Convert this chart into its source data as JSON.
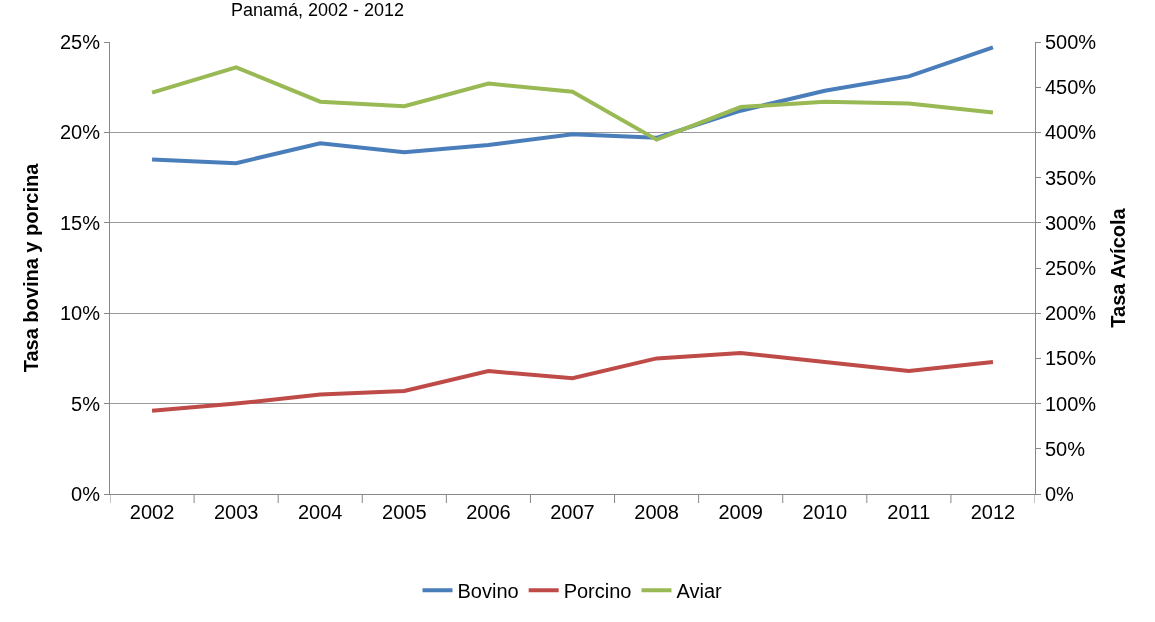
{
  "chart_data": {
    "type": "line",
    "title": "Panamá, 2002 - 2012",
    "ylabel": "Tasa bovina y porcina",
    "y2label": "Tasa Avícola",
    "categories": [
      "2002",
      "2003",
      "2004",
      "2005",
      "2006",
      "2007",
      "2008",
      "2009",
      "2010",
      "2011",
      "2012"
    ],
    "series": [
      {
        "name": "Bovino",
        "color": "#4a7ebb",
        "values": [
          18.5,
          18.3,
          19.4,
          18.9,
          19.3,
          19.9,
          19.7,
          21.2,
          22.3,
          23.1,
          24.7
        ]
      },
      {
        "name": "Porcino",
        "color": "#be4b48",
        "values": [
          4.6,
          5.0,
          5.5,
          5.7,
          6.8,
          6.4,
          7.5,
          7.8,
          7.3,
          6.8,
          7.3
        ]
      },
      {
        "name": "Aviar",
        "color": "#98b954",
        "axis": "y2",
        "values": [
          444,
          472,
          434,
          429,
          454,
          445,
          392,
          428,
          434,
          432,
          422
        ]
      }
    ],
    "ylim": [
      0,
      25
    ],
    "yticks": [
      {
        "value": 0,
        "label": "0%"
      },
      {
        "value": 5,
        "label": "5%"
      },
      {
        "value": 10,
        "label": "10%"
      },
      {
        "value": 15,
        "label": "15%"
      },
      {
        "value": 20,
        "label": "20%"
      },
      {
        "value": 25,
        "label": "25%"
      }
    ],
    "y2lim": [
      0,
      500
    ],
    "y2ticks": [
      {
        "value": 0,
        "label": "0%"
      },
      {
        "value": 50,
        "label": "50%"
      },
      {
        "value": 100,
        "label": "100%"
      },
      {
        "value": 150,
        "label": "150%"
      },
      {
        "value": 200,
        "label": "200%"
      },
      {
        "value": 250,
        "label": "250%"
      },
      {
        "value": 300,
        "label": "300%"
      },
      {
        "value": 350,
        "label": "350%"
      },
      {
        "value": 400,
        "label": "400%"
      },
      {
        "value": 450,
        "label": "450%"
      },
      {
        "value": 500,
        "label": "500%"
      }
    ],
    "grid": "y",
    "legend": "bottom",
    "marker": "none",
    "line_style": "solid"
  }
}
